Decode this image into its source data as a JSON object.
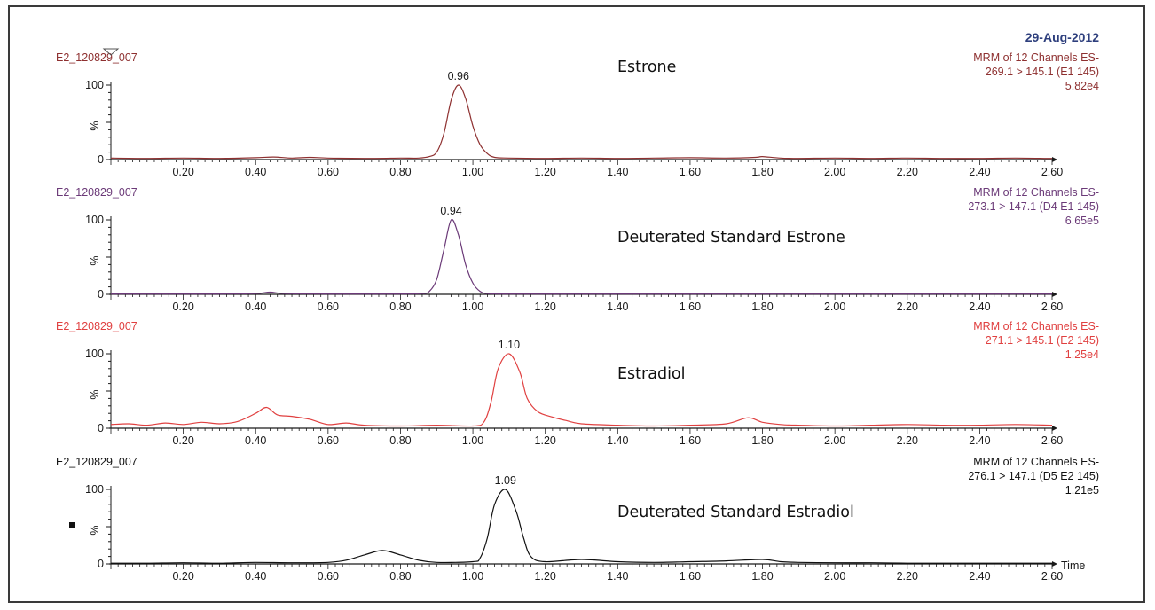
{
  "header": {
    "date": "29-Aug-2012"
  },
  "colors": {
    "frame": "#3a3a3a",
    "axis": "#1a1a1a",
    "date": "#2e3f7d"
  },
  "chart_data": [
    {
      "type": "line",
      "sample": "E2_120829_007",
      "title": "Estrone",
      "info": [
        "MRM of 12 Channels ES-",
        "269.1 > 145.1 (E1 145)",
        "5.82e4"
      ],
      "color": "#8e3030",
      "peak_label": "0.96",
      "x_tick_labels": [
        "0.20",
        "0.40",
        "0.60",
        "0.80",
        "1.00",
        "1.20",
        "1.40",
        "1.60",
        "1.80",
        "2.00",
        "2.20",
        "2.40",
        "2.60"
      ],
      "y_tick_labels": [
        "0",
        "100"
      ],
      "ylabel": "%",
      "xlim": [
        0.0,
        2.6
      ],
      "ylim": [
        0,
        100
      ],
      "series": [
        {
          "x": [
            0.0,
            0.1,
            0.2,
            0.3,
            0.4,
            0.45,
            0.5,
            0.55,
            0.6,
            0.7,
            0.8,
            0.85,
            0.88,
            0.9,
            0.92,
            0.94,
            0.96,
            0.98,
            1.0,
            1.02,
            1.04,
            1.06,
            1.1,
            1.2,
            1.3,
            1.4,
            1.5,
            1.6,
            1.7,
            1.78,
            1.8,
            1.85,
            1.9,
            2.0,
            2.1,
            2.2,
            2.3,
            2.4,
            2.5,
            2.6
          ],
          "y": [
            2,
            1.5,
            2,
            1.5,
            2.5,
            3.5,
            2,
            3,
            2,
            1.5,
            2,
            2,
            4,
            10,
            35,
            80,
            100,
            82,
            45,
            20,
            8,
            3,
            2,
            1.5,
            2,
            1.5,
            2,
            2.5,
            2,
            3,
            4,
            2,
            1.5,
            2,
            1.5,
            2,
            1.5,
            1.5,
            2,
            1.5
          ]
        }
      ]
    },
    {
      "type": "line",
      "sample": "E2_120829_007",
      "title": "Deuterated Standard Estrone",
      "info": [
        "MRM of 12 Channels ES-",
        "273.1 > 147.1 (D4 E1 145)",
        "6.65e5"
      ],
      "color": "#6b3a78",
      "peak_label": "0.94",
      "x_tick_labels": [
        "0.20",
        "0.40",
        "0.60",
        "0.80",
        "1.00",
        "1.20",
        "1.40",
        "1.60",
        "1.80",
        "2.00",
        "2.20",
        "2.40",
        "2.60"
      ],
      "y_tick_labels": [
        "0",
        "100"
      ],
      "ylabel": "%",
      "xlim": [
        0.0,
        2.6
      ],
      "ylim": [
        0,
        100
      ],
      "series": [
        {
          "x": [
            0.0,
            0.1,
            0.2,
            0.3,
            0.4,
            0.44,
            0.48,
            0.6,
            0.8,
            0.86,
            0.88,
            0.9,
            0.92,
            0.94,
            0.96,
            0.98,
            1.0,
            1.02,
            1.04,
            1.08,
            1.2,
            1.4,
            1.6,
            1.8,
            2.0,
            2.2,
            2.4,
            2.6
          ],
          "y": [
            0.5,
            0.5,
            0.5,
            0.5,
            1,
            3,
            1,
            0.5,
            0.5,
            1,
            4,
            20,
            60,
            100,
            80,
            40,
            15,
            4,
            1,
            0.5,
            0.5,
            0.5,
            0.5,
            0.5,
            0.5,
            0.5,
            0.5,
            0.5
          ]
        }
      ]
    },
    {
      "type": "line",
      "sample": "E2_120829_007",
      "title": "Estradiol",
      "info": [
        "MRM of 12 Channels ES-",
        "271.1 > 145.1 (E2 145)",
        "1.25e4"
      ],
      "color": "#e04040",
      "peak_label": "1.10",
      "x_tick_labels": [
        "0.20",
        "0.40",
        "0.60",
        "0.80",
        "1.00",
        "1.20",
        "1.40",
        "1.60",
        "1.80",
        "2.00",
        "2.20",
        "2.40",
        "2.60"
      ],
      "y_tick_labels": [
        "0",
        "100"
      ],
      "ylabel": "%",
      "xlim": [
        0.0,
        2.6
      ],
      "ylim": [
        0,
        100
      ],
      "series": [
        {
          "x": [
            0.0,
            0.05,
            0.1,
            0.15,
            0.2,
            0.25,
            0.3,
            0.35,
            0.4,
            0.43,
            0.46,
            0.5,
            0.55,
            0.6,
            0.65,
            0.7,
            0.8,
            0.9,
            1.0,
            1.03,
            1.05,
            1.07,
            1.1,
            1.13,
            1.15,
            1.18,
            1.22,
            1.26,
            1.3,
            1.4,
            1.5,
            1.6,
            1.7,
            1.76,
            1.8,
            1.85,
            1.9,
            2.0,
            2.1,
            2.2,
            2.3,
            2.4,
            2.5,
            2.6
          ],
          "y": [
            5,
            6,
            4,
            7,
            5,
            8,
            6,
            9,
            20,
            28,
            18,
            16,
            12,
            5,
            7,
            4,
            3,
            4,
            3,
            8,
            35,
            80,
            100,
            75,
            40,
            22,
            15,
            10,
            6,
            4,
            3,
            4,
            6,
            14,
            8,
            5,
            4,
            3,
            4,
            5,
            4,
            4,
            5,
            4
          ]
        }
      ]
    },
    {
      "type": "line",
      "sample": "E2_120829_007",
      "title": "Deuterated Standard Estradiol",
      "info": [
        "MRM of 12 Channels ES-",
        "276.1 > 147.1 (D5 E2 145)",
        "1.21e5"
      ],
      "color": "#111111",
      "peak_label": "1.09",
      "x_tick_labels": [
        "0.20",
        "0.40",
        "0.60",
        "0.80",
        "1.00",
        "1.20",
        "1.40",
        "1.60",
        "1.80",
        "2.00",
        "2.20",
        "2.40",
        "2.60"
      ],
      "y_tick_labels": [
        "0",
        "100"
      ],
      "ylabel": "%",
      "xlabel": "Time",
      "xlim": [
        0.0,
        2.6
      ],
      "ylim": [
        0,
        100
      ],
      "series": [
        {
          "x": [
            0.0,
            0.1,
            0.2,
            0.3,
            0.4,
            0.5,
            0.6,
            0.65,
            0.7,
            0.75,
            0.8,
            0.85,
            0.9,
            1.0,
            1.02,
            1.04,
            1.06,
            1.09,
            1.12,
            1.14,
            1.16,
            1.2,
            1.3,
            1.4,
            1.5,
            1.6,
            1.7,
            1.8,
            1.85,
            1.9,
            2.0,
            2.1,
            2.2,
            2.3,
            2.4,
            2.5,
            2.6
          ],
          "y": [
            1,
            1,
            1.5,
            1,
            2,
            1.5,
            2,
            5,
            12,
            18,
            12,
            5,
            2,
            3,
            8,
            35,
            80,
            100,
            70,
            35,
            10,
            3,
            6,
            3,
            2,
            3,
            4,
            6,
            3,
            2,
            1.5,
            1.5,
            1,
            1,
            1,
            1,
            1
          ]
        }
      ]
    }
  ]
}
